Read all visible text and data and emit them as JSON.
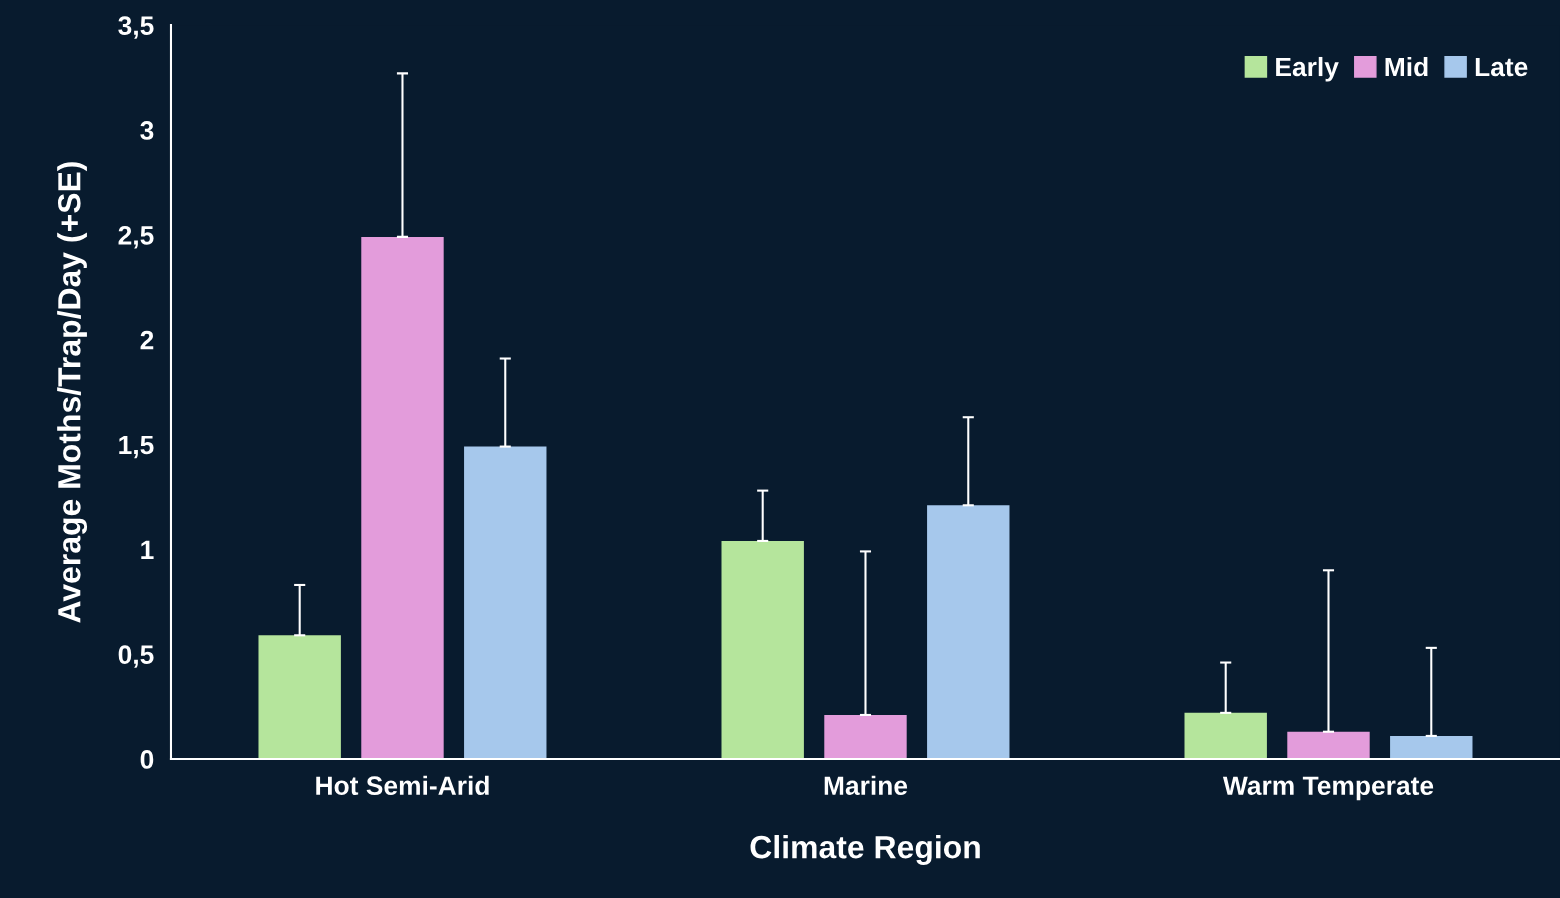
{
  "chart_data": {
    "type": "bar",
    "xlabel": "Climate Region",
    "ylabel": "Average Moths/Trap/Day (+SE)",
    "categories": [
      "Hot Semi-Arid",
      "Marine",
      "Warm Temperate"
    ],
    "series": [
      {
        "name": "Early",
        "color": "#b5e59c",
        "values": [
          0.59,
          1.04,
          0.22
        ],
        "errors": [
          [
            0.59,
            0.83
          ],
          [
            1.04,
            1.28
          ],
          [
            0.22,
            0.46
          ]
        ]
      },
      {
        "name": "Mid",
        "color": "#e39cdb",
        "values": [
          2.49,
          0.21,
          0.13
        ],
        "errors": [
          [
            2.49,
            3.27
          ],
          [
            0.21,
            0.99
          ],
          [
            0.13,
            0.9
          ]
        ]
      },
      {
        "name": "Late",
        "color": "#a6c8ec",
        "values": [
          1.49,
          1.21,
          0.11
        ],
        "errors": [
          [
            1.49,
            1.91
          ],
          [
            1.21,
            1.63
          ],
          [
            0.11,
            0.53
          ]
        ]
      }
    ],
    "ylim": [
      0,
      3.5
    ],
    "yticks": [
      0,
      {
        "value": 0.5,
        "label": "0,5"
      },
      1,
      {
        "value": 1.5,
        "label": "1,5"
      },
      2,
      {
        "value": 2.5,
        "label": "2,5"
      },
      3,
      {
        "value": 3.5,
        "label": "3,5"
      }
    ],
    "grid": false,
    "legend": "top right"
  }
}
